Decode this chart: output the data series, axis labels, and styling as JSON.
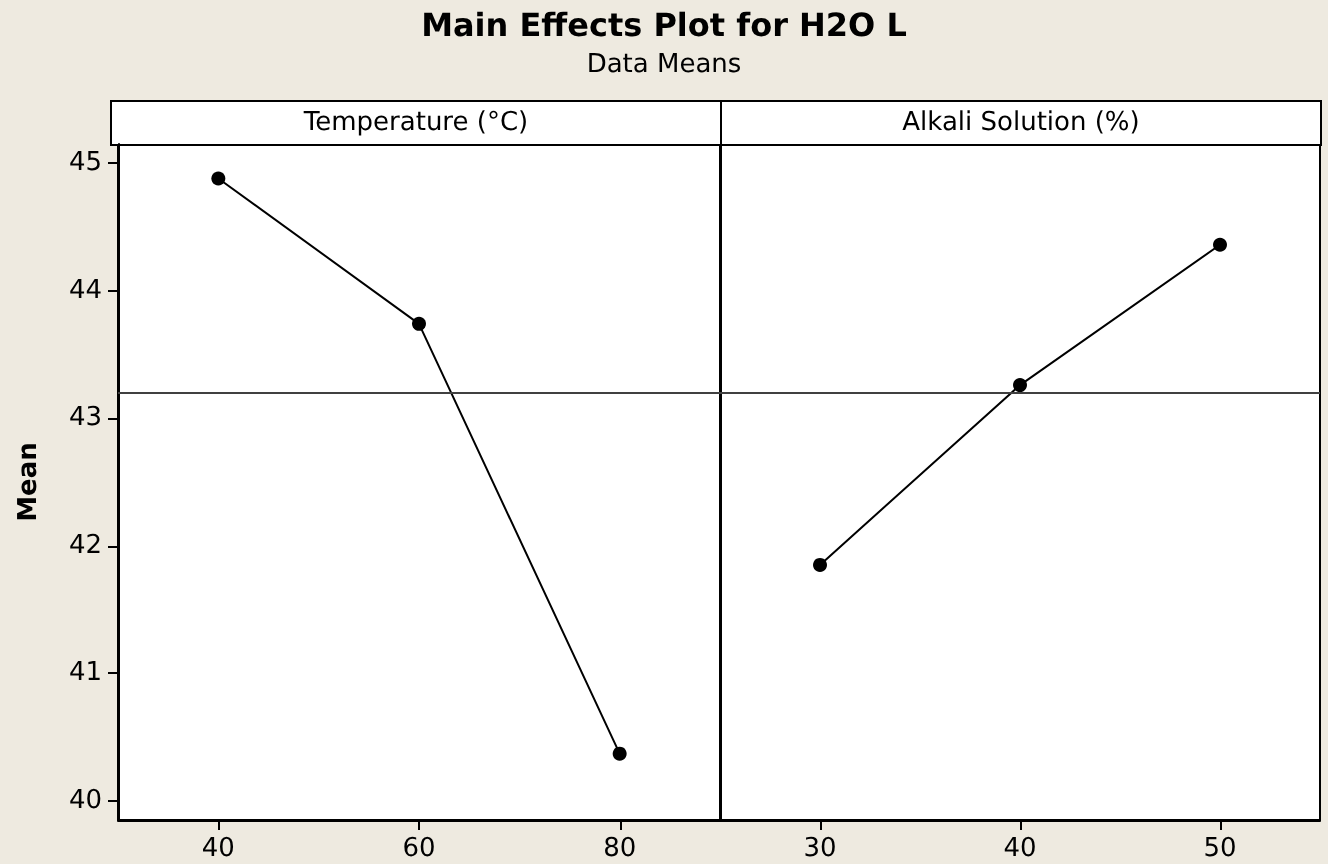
{
  "chart_data": [
    {
      "type": "line",
      "title": "Main Effects Plot for H2O L",
      "subtitle": "Data Means",
      "xlabel": "Temperature (°C)",
      "ylabel": "Mean",
      "x": [
        40,
        60,
        80
      ],
      "series": [
        {
          "color": "#000000",
          "values": [
            44.88,
            43.74,
            40.37
          ]
        }
      ],
      "xlim": [
        30,
        90
      ],
      "xticks": [
        40,
        60,
        80
      ],
      "ylim": [
        39.85,
        45.15
      ],
      "yticks": [
        40,
        41,
        42,
        43,
        44,
        45
      ],
      "ref_lines": [
        {
          "axis": "y",
          "value": 43.2,
          "color": "#404040"
        }
      ],
      "marker": "circle",
      "line_style": "solid",
      "grid": false
    },
    {
      "type": "line",
      "xlabel": "Alkali Solution (%)",
      "x": [
        30,
        40,
        50
      ],
      "series": [
        {
          "color": "#000000",
          "values": [
            41.85,
            43.26,
            44.36
          ]
        }
      ],
      "xlim": [
        25,
        55
      ],
      "xticks": [
        30,
        40,
        50
      ],
      "ylim": [
        39.85,
        45.15
      ],
      "ref_lines": [
        {
          "axis": "y",
          "value": 43.2,
          "color": "#404040"
        }
      ],
      "marker": "circle",
      "line_style": "solid",
      "grid": false,
      "tick_labels": "x"
    }
  ]
}
